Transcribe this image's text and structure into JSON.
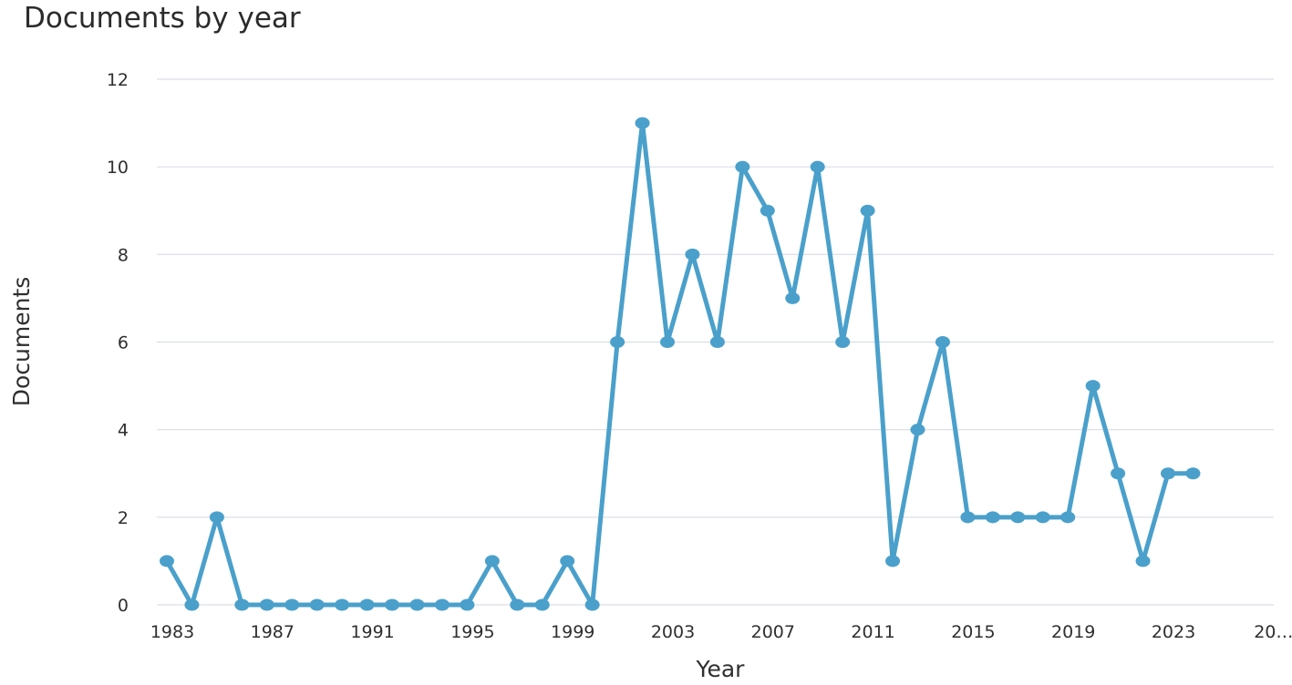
{
  "chart_data": {
    "type": "line",
    "title": "Documents by year",
    "xlabel": "Year",
    "ylabel": "Documents",
    "x": [
      1983,
      1984,
      1985,
      1986,
      1987,
      1988,
      1989,
      1990,
      1991,
      1992,
      1993,
      1994,
      1995,
      1996,
      1997,
      1998,
      1999,
      2000,
      2001,
      2002,
      2003,
      2004,
      2005,
      2006,
      2007,
      2008,
      2009,
      2010,
      2011,
      2012,
      2013,
      2014,
      2015,
      2016,
      2017,
      2018,
      2019,
      2020,
      2021,
      2022,
      2023,
      2024
    ],
    "values": [
      1,
      0,
      2,
      0,
      0,
      0,
      0,
      0,
      0,
      0,
      0,
      0,
      0,
      1,
      0,
      0,
      1,
      0,
      6,
      11,
      6,
      8,
      6,
      10,
      9,
      7,
      10,
      6,
      9,
      1,
      4,
      6,
      2,
      2,
      2,
      2,
      2,
      5,
      3,
      1,
      3,
      3
    ],
    "x_tick_labels": [
      "1983",
      "1987",
      "1991",
      "1995",
      "1999",
      "2003",
      "2007",
      "2011",
      "2015",
      "2019",
      "2023",
      "20…"
    ],
    "y_ticks": [
      0,
      2,
      4,
      6,
      8,
      10,
      12
    ],
    "xlim": [
      1983,
      2027
    ],
    "ylim": [
      0,
      12
    ],
    "grid": true,
    "legend": "none",
    "line_color": "#4aa0cb",
    "grid_color": "#d9dee5"
  }
}
